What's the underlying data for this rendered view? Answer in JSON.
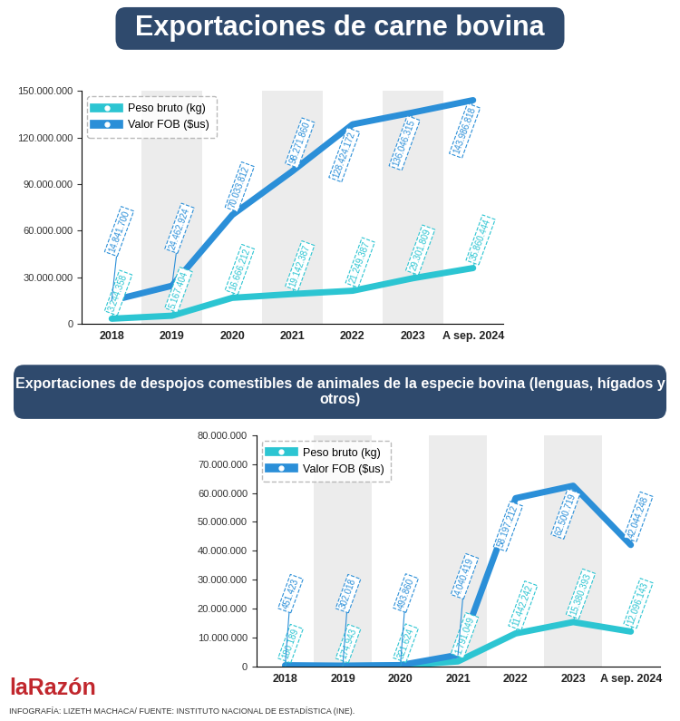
{
  "chart_data": [
    {
      "type": "line",
      "title": "Exportaciones de carne bovina",
      "categories": [
        "2018",
        "2019",
        "2020",
        "2021",
        "2022",
        "2023",
        "A sep. 2024"
      ],
      "series": [
        {
          "name": "Peso bruto (kg)",
          "color": "#2cc5d2",
          "values": [
            3244358,
            5167404,
            16666212,
            19142387,
            21249387,
            29301809,
            35860444
          ],
          "value_labels": [
            "3.244.358",
            "5.167.404",
            "16.666.212",
            "19.142.387",
            "21.249.387",
            "29.301.809",
            "35.860.444"
          ]
        },
        {
          "name": "Valor FOB ($us)",
          "color": "#2b8fd8",
          "values": [
            14841700,
            24462924,
            70033812,
            98271860,
            128424172,
            136046315,
            143986818
          ],
          "value_labels": [
            "14.841.700",
            "24.462.924",
            "70.033.812",
            "98.271.860",
            "128.424.172",
            "136.046.315",
            "143.986.818"
          ]
        }
      ],
      "ylim": [
        0,
        150000000
      ],
      "yticks": [
        {
          "value": 0,
          "label": "0"
        },
        {
          "value": 30000000,
          "label": "30.000.000"
        },
        {
          "value": 60000000,
          "label": "60.000.000"
        },
        {
          "value": 90000000,
          "label": "90.000.000"
        },
        {
          "value": 120000000,
          "label": "120.000.000"
        },
        {
          "value": 150000000,
          "label": "150.000.000"
        }
      ],
      "legend": "upper left",
      "data_labels": true,
      "grid": false
    },
    {
      "type": "line",
      "title": "Exportaciones de despojos comestibles de animales de la especie bovina (lenguas, hígados y otros)",
      "categories": [
        "2018",
        "2019",
        "2020",
        "2021",
        "2022",
        "2023",
        "A sep. 2024"
      ],
      "series": [
        {
          "name": "Peso bruto (kg)",
          "color": "#2cc5d2",
          "values": [
            180189,
            174943,
            321624,
            1791049,
            11442242,
            15380393,
            12096143
          ],
          "value_labels": [
            "180.189",
            "174.943",
            "321.624",
            "1.791.049",
            "11.442.242",
            "15.380.393",
            "12.096.143"
          ]
        },
        {
          "name": "Valor FOB ($us)",
          "color": "#2b8fd8",
          "values": [
            451423,
            302018,
            493860,
            4040419,
            58197212,
            62500719,
            42044248
          ],
          "value_labels": [
            "451.423",
            "302.018",
            "493.860",
            "4.040.419",
            "58.197.212",
            "62.500.719",
            "42.044.248"
          ]
        }
      ],
      "ylim": [
        0,
        80000000
      ],
      "yticks": [
        {
          "value": 0,
          "label": "0"
        },
        {
          "value": 10000000,
          "label": "10.000.000"
        },
        {
          "value": 20000000,
          "label": "20.000.000"
        },
        {
          "value": 30000000,
          "label": "30.000.000"
        },
        {
          "value": 40000000,
          "label": "40.000.000"
        },
        {
          "value": 50000000,
          "label": "50.000.000"
        },
        {
          "value": 60000000,
          "label": "60.000.000"
        },
        {
          "value": 70000000,
          "label": "70.000.000"
        },
        {
          "value": 80000000,
          "label": "80.000.000"
        }
      ],
      "legend": "upper left",
      "data_labels": true,
      "grid": false
    }
  ],
  "logo": "laRazón",
  "credit": "INFOGRAFÍA: LIZETH MACHACA/ FUENTE: INSTITUTO NACIONAL DE ESTADÍSTICA (INE)."
}
